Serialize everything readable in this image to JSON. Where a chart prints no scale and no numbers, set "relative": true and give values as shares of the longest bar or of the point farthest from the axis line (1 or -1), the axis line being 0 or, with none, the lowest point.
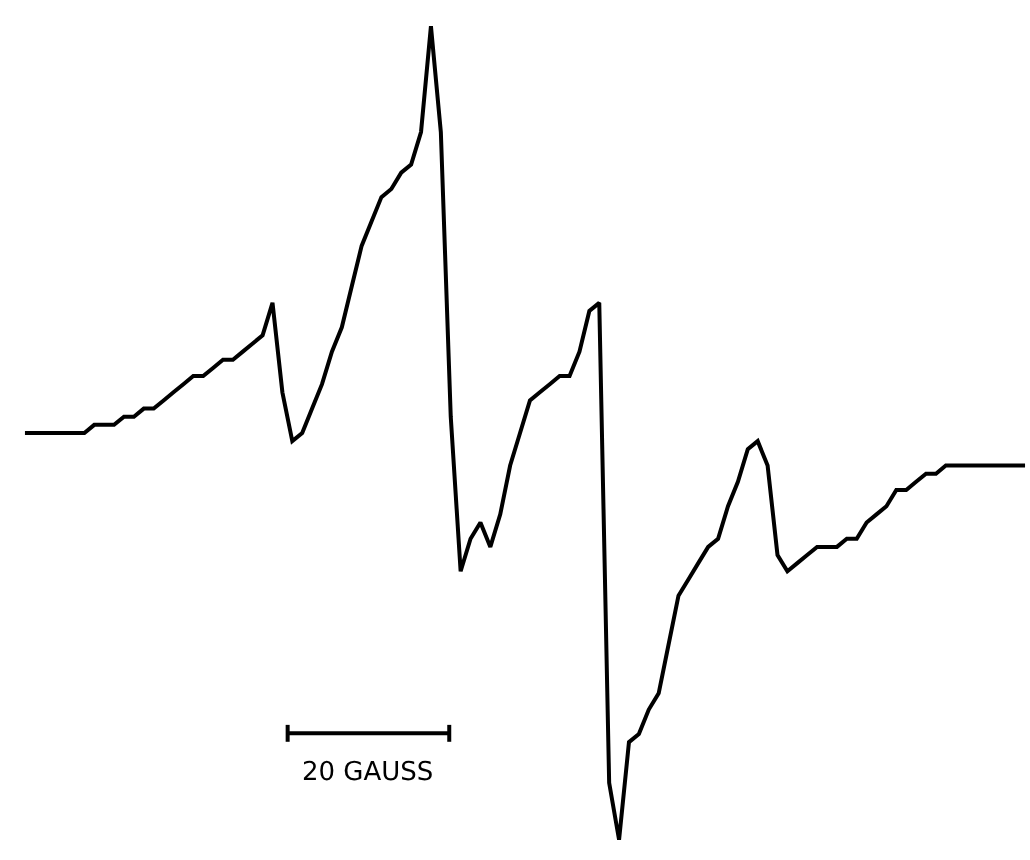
{
  "chart_data": {
    "type": "line",
    "relative": true,
    "categories": [
      null,
      null,
      null,
      null,
      null,
      null,
      null,
      null,
      null,
      null,
      null,
      null,
      null,
      null,
      null,
      null,
      null,
      null,
      null,
      null,
      null,
      null,
      null,
      null,
      null,
      null,
      null,
      null,
      null,
      null,
      null,
      null,
      null,
      null,
      null,
      null,
      null,
      null,
      null,
      null,
      null,
      null,
      null,
      null,
      null,
      null,
      null,
      null,
      null,
      null,
      null,
      null,
      null,
      null,
      null,
      null,
      null,
      null,
      null,
      null,
      null,
      null,
      null,
      null,
      null,
      null,
      null,
      null,
      null,
      null,
      null,
      null,
      null,
      null,
      null,
      null,
      null,
      null,
      null,
      null,
      null,
      null,
      null,
      null,
      null,
      null,
      null,
      null,
      null,
      null,
      null,
      null,
      null,
      null,
      null,
      null,
      null,
      null,
      null,
      null,
      null,
      null
    ],
    "series": [
      {
        "color": "#000000",
        "values": [
          0.5,
          0.5,
          0.5,
          0.5,
          0.5,
          0.5,
          0.5,
          0.51,
          0.51,
          0.51,
          0.52,
          0.52,
          0.53,
          0.53,
          0.54,
          0.55,
          0.56,
          0.57,
          0.57,
          0.58,
          0.59,
          0.59,
          0.6,
          0.61,
          0.62,
          0.66,
          0.55,
          0.49,
          0.5,
          0.53,
          0.56,
          0.6,
          0.63,
          0.68,
          0.73,
          0.76,
          0.79,
          0.8,
          0.82,
          0.83,
          0.87,
          1,
          0.87,
          0.52,
          0.33,
          0.37,
          0.39,
          0.36,
          0.4,
          0.46,
          0.5,
          0.54,
          0.55,
          0.56,
          0.57,
          0.57,
          0.6,
          0.65,
          0.66,
          0.07,
          0,
          0.12,
          0.13,
          0.16,
          0.18,
          0.24,
          0.3,
          0.32,
          0.34,
          0.36,
          0.37,
          0.41,
          0.44,
          0.48,
          0.49,
          0.46,
          0.35,
          0.33,
          0.34,
          0.35,
          0.36,
          0.36,
          0.36,
          0.37,
          0.37,
          0.39,
          0.4,
          0.41,
          0.43,
          0.43,
          0.44,
          0.45,
          0.45,
          0.46,
          0.46,
          0.46,
          0.46,
          0.46,
          0.46,
          0.46,
          0.46,
          0.46
        ]
      }
    ],
    "annotations": [
      "20 GAUSS"
    ],
    "marker": "none",
    "line_style": "solid"
  }
}
